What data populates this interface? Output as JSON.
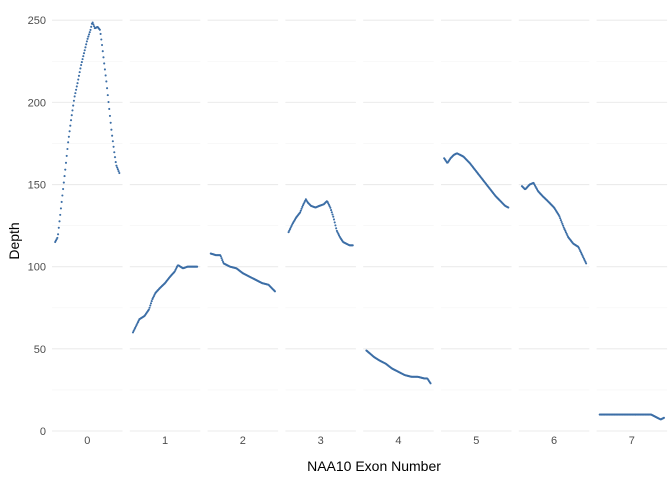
{
  "chart_data": {
    "type": "scatter",
    "title": "",
    "xlabel": "NAA10 Exon Number",
    "ylabel": "Depth",
    "ylim": [
      0,
      255
    ],
    "y_ticks": [
      0,
      50,
      100,
      150,
      200,
      250
    ],
    "y_tick_labels": [
      "0",
      "50",
      "100",
      "150",
      "200",
      "250"
    ],
    "facets": [
      "0",
      "1",
      "2",
      "3",
      "4",
      "5",
      "6",
      "7"
    ],
    "grid": true,
    "legend": "none",
    "point_color": "#3c6ea6",
    "series": [
      {
        "exon": "0",
        "points": [
          [
            0,
            115
          ],
          [
            0.04,
            118
          ],
          [
            0.08,
            132
          ],
          [
            0.12,
            146
          ],
          [
            0.16,
            160
          ],
          [
            0.2,
            175
          ],
          [
            0.25,
            190
          ],
          [
            0.3,
            203
          ],
          [
            0.35,
            212
          ],
          [
            0.4,
            222
          ],
          [
            0.45,
            230
          ],
          [
            0.5,
            238
          ],
          [
            0.55,
            244
          ],
          [
            0.58,
            249
          ],
          [
            0.62,
            245
          ],
          [
            0.66,
            246
          ],
          [
            0.7,
            244
          ],
          [
            0.73,
            235
          ],
          [
            0.76,
            225
          ],
          [
            0.8,
            212
          ],
          [
            0.84,
            197
          ],
          [
            0.88,
            182
          ],
          [
            0.92,
            170
          ],
          [
            0.95,
            162
          ],
          [
            1.0,
            157
          ]
        ]
      },
      {
        "exon": "1",
        "points": [
          [
            0,
            60
          ],
          [
            0.05,
            64
          ],
          [
            0.1,
            68
          ],
          [
            0.18,
            70
          ],
          [
            0.25,
            74
          ],
          [
            0.3,
            80
          ],
          [
            0.35,
            84
          ],
          [
            0.42,
            87
          ],
          [
            0.5,
            90
          ],
          [
            0.58,
            94
          ],
          [
            0.65,
            97
          ],
          [
            0.7,
            101
          ],
          [
            0.78,
            99
          ],
          [
            0.85,
            100
          ],
          [
            0.92,
            100
          ],
          [
            1.0,
            100
          ]
        ]
      },
      {
        "exon": "2",
        "points": [
          [
            0,
            108
          ],
          [
            0.08,
            107
          ],
          [
            0.15,
            107
          ],
          [
            0.2,
            102
          ],
          [
            0.3,
            100
          ],
          [
            0.4,
            99
          ],
          [
            0.5,
            96
          ],
          [
            0.6,
            94
          ],
          [
            0.7,
            92
          ],
          [
            0.8,
            90
          ],
          [
            0.9,
            89
          ],
          [
            0.95,
            87
          ],
          [
            1.0,
            85
          ]
        ]
      },
      {
        "exon": "3",
        "points": [
          [
            0,
            121
          ],
          [
            0.06,
            126
          ],
          [
            0.12,
            130
          ],
          [
            0.18,
            133
          ],
          [
            0.22,
            137
          ],
          [
            0.27,
            141
          ],
          [
            0.3,
            139
          ],
          [
            0.35,
            137
          ],
          [
            0.42,
            136
          ],
          [
            0.48,
            137
          ],
          [
            0.55,
            138
          ],
          [
            0.6,
            140
          ],
          [
            0.65,
            136
          ],
          [
            0.7,
            130
          ],
          [
            0.75,
            122
          ],
          [
            0.8,
            118
          ],
          [
            0.85,
            115
          ],
          [
            0.9,
            114
          ],
          [
            0.95,
            113
          ],
          [
            1.0,
            113
          ]
        ]
      },
      {
        "exon": "4",
        "points": [
          [
            0,
            49
          ],
          [
            0.06,
            47
          ],
          [
            0.12,
            45
          ],
          [
            0.2,
            43
          ],
          [
            0.3,
            41
          ],
          [
            0.4,
            38
          ],
          [
            0.5,
            36
          ],
          [
            0.6,
            34
          ],
          [
            0.7,
            33
          ],
          [
            0.8,
            33
          ],
          [
            0.9,
            32
          ],
          [
            0.95,
            32
          ],
          [
            1.0,
            29
          ]
        ]
      },
      {
        "exon": "5",
        "points": [
          [
            0,
            166
          ],
          [
            0.05,
            163
          ],
          [
            0.1,
            166
          ],
          [
            0.15,
            168
          ],
          [
            0.2,
            169
          ],
          [
            0.3,
            167
          ],
          [
            0.4,
            163
          ],
          [
            0.5,
            158
          ],
          [
            0.6,
            153
          ],
          [
            0.7,
            148
          ],
          [
            0.8,
            143
          ],
          [
            0.9,
            139
          ],
          [
            0.95,
            137
          ],
          [
            1.0,
            136
          ]
        ]
      },
      {
        "exon": "6",
        "points": [
          [
            0,
            149
          ],
          [
            0.05,
            147
          ],
          [
            0.12,
            150
          ],
          [
            0.18,
            151
          ],
          [
            0.25,
            146
          ],
          [
            0.32,
            143
          ],
          [
            0.4,
            140
          ],
          [
            0.5,
            136
          ],
          [
            0.58,
            131
          ],
          [
            0.65,
            124
          ],
          [
            0.72,
            118
          ],
          [
            0.8,
            114
          ],
          [
            0.88,
            112
          ],
          [
            0.94,
            107
          ],
          [
            1.0,
            102
          ]
        ]
      },
      {
        "exon": "7",
        "points": [
          [
            0,
            10
          ],
          [
            0.1,
            10
          ],
          [
            0.2,
            10
          ],
          [
            0.3,
            10
          ],
          [
            0.4,
            10
          ],
          [
            0.5,
            10
          ],
          [
            0.6,
            10
          ],
          [
            0.7,
            10
          ],
          [
            0.8,
            10
          ],
          [
            0.85,
            9
          ],
          [
            0.9,
            8
          ],
          [
            0.95,
            7
          ],
          [
            1.0,
            8
          ]
        ]
      }
    ]
  }
}
